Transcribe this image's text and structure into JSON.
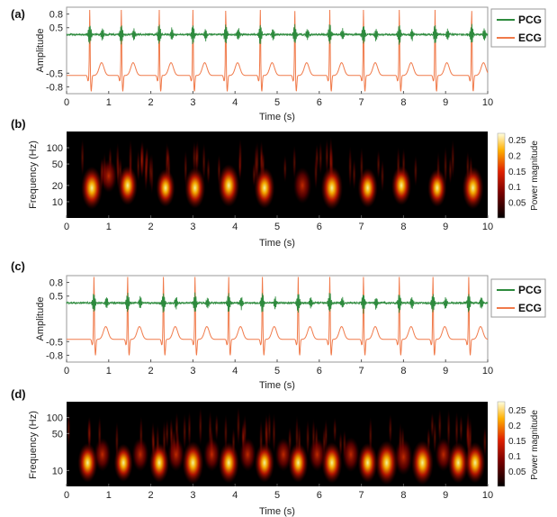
{
  "colors": {
    "pcg": "#2e8b3e",
    "ecg": "#f07a4a",
    "axis": "#333333",
    "frame": "#888888"
  },
  "chart_data": [
    {
      "panel": "(a)",
      "type": "line",
      "xlabel": "Time (s)",
      "ylabel": "Amplitude",
      "xlim": [
        0,
        10
      ],
      "ylim": [
        -0.95,
        0.95
      ],
      "x_ticks": [
        "0",
        "1",
        "2",
        "3",
        "4",
        "5",
        "6",
        "7",
        "8",
        "9",
        "10"
      ],
      "y_ticks": [
        "0.8",
        "0.5",
        "-0.5",
        "-0.8"
      ],
      "y_tick_values": [
        0.8,
        0.5,
        -0.5,
        -0.8
      ],
      "series": [
        {
          "name": "PCG",
          "baseline": 0.35,
          "beats": [
            0.55,
            1.3,
            2.2,
            3.0,
            3.78,
            4.6,
            5.42,
            6.25,
            7.05,
            7.9,
            8.75,
            9.62
          ]
        },
        {
          "name": "ECG",
          "baseline": -0.55,
          "r_peaks": [
            0.55,
            1.3,
            2.2,
            3.0,
            3.78,
            4.6,
            5.42,
            6.25,
            7.05,
            7.9,
            8.75,
            9.62
          ]
        }
      ],
      "legend": "right"
    },
    {
      "panel": "(b)",
      "type": "heatmap",
      "xlabel": "Time (s)",
      "ylabel": "Frequency (Hz)",
      "xlim": [
        0,
        10
      ],
      "y_ticks": [
        "100",
        "50",
        "20",
        "10"
      ],
      "x_ticks": [
        "0",
        "1",
        "2",
        "3",
        "4",
        "5",
        "6",
        "7",
        "8",
        "9",
        "10"
      ],
      "colorbar_label": "Power magnitude",
      "colorbar_ticks": [
        "0.25",
        "0.2",
        "0.15",
        "0.1",
        "0.05"
      ],
      "blobs": [
        {
          "t": 0.6,
          "f": 18,
          "p": 0.24
        },
        {
          "t": 1.0,
          "f": 30,
          "p": 0.12
        },
        {
          "t": 1.45,
          "f": 20,
          "p": 0.2
        },
        {
          "t": 2.35,
          "f": 18,
          "p": 0.18
        },
        {
          "t": 3.05,
          "f": 18,
          "p": 0.22
        },
        {
          "t": 3.85,
          "f": 20,
          "p": 0.24
        },
        {
          "t": 4.7,
          "f": 18,
          "p": 0.22
        },
        {
          "t": 5.6,
          "f": 20,
          "p": 0.16
        },
        {
          "t": 6.3,
          "f": 18,
          "p": 0.25
        },
        {
          "t": 7.15,
          "f": 18,
          "p": 0.2
        },
        {
          "t": 7.95,
          "f": 20,
          "p": 0.2
        },
        {
          "t": 8.8,
          "f": 18,
          "p": 0.18
        },
        {
          "t": 9.65,
          "f": 18,
          "p": 0.24
        }
      ]
    },
    {
      "panel": "(c)",
      "type": "line",
      "xlabel": "Time (s)",
      "ylabel": "Amplitude",
      "xlim": [
        0,
        10
      ],
      "ylim": [
        -0.95,
        0.95
      ],
      "x_ticks": [
        "0",
        "1",
        "2",
        "3",
        "4",
        "5",
        "6",
        "7",
        "8",
        "9",
        "10"
      ],
      "y_ticks": [
        "0.8",
        "0.5",
        "-0.5",
        "-0.8"
      ],
      "y_tick_values": [
        0.8,
        0.5,
        -0.5,
        -0.8
      ],
      "series": [
        {
          "name": "PCG",
          "baseline": 0.35,
          "beats": [
            0.65,
            1.45,
            2.3,
            3.05,
            3.85,
            4.65,
            5.5,
            6.25,
            7.05,
            7.9,
            8.7,
            9.55
          ]
        },
        {
          "name": "ECG",
          "baseline": -0.45,
          "r_peaks": [
            0.65,
            1.45,
            2.3,
            3.05,
            3.85,
            4.65,
            5.5,
            6.25,
            7.05,
            7.9,
            8.7,
            9.55
          ]
        }
      ],
      "legend": "right"
    },
    {
      "panel": "(d)",
      "type": "heatmap",
      "xlabel": "Time (s)",
      "ylabel": "Frequency (Hz)",
      "xlim": [
        0,
        10
      ],
      "y_ticks": [
        "100",
        "50",
        "10"
      ],
      "x_ticks": [
        "0",
        "1",
        "2",
        "3",
        "4",
        "5",
        "6",
        "7",
        "8",
        "9",
        "10"
      ],
      "colorbar_label": "Power magnitude",
      "colorbar_ticks": [
        "0.25",
        "0.2",
        "0.15",
        "0.1",
        "0.05"
      ],
      "blobs": [
        {
          "t": 0.5,
          "f": 14,
          "p": 0.2
        },
        {
          "t": 0.85,
          "f": 20,
          "p": 0.12
        },
        {
          "t": 1.35,
          "f": 14,
          "p": 0.18
        },
        {
          "t": 1.75,
          "f": 20,
          "p": 0.12
        },
        {
          "t": 2.2,
          "f": 14,
          "p": 0.2
        },
        {
          "t": 2.6,
          "f": 20,
          "p": 0.12
        },
        {
          "t": 3.0,
          "f": 14,
          "p": 0.24
        },
        {
          "t": 3.45,
          "f": 20,
          "p": 0.12
        },
        {
          "t": 3.85,
          "f": 14,
          "p": 0.22
        },
        {
          "t": 4.3,
          "f": 20,
          "p": 0.12
        },
        {
          "t": 4.7,
          "f": 14,
          "p": 0.2
        },
        {
          "t": 5.15,
          "f": 20,
          "p": 0.12
        },
        {
          "t": 5.5,
          "f": 14,
          "p": 0.2
        },
        {
          "t": 5.95,
          "f": 20,
          "p": 0.12
        },
        {
          "t": 6.3,
          "f": 14,
          "p": 0.22
        },
        {
          "t": 6.75,
          "f": 20,
          "p": 0.14
        },
        {
          "t": 7.15,
          "f": 14,
          "p": 0.2
        },
        {
          "t": 7.6,
          "f": 14,
          "p": 0.26
        },
        {
          "t": 8.0,
          "f": 18,
          "p": 0.16
        },
        {
          "t": 8.45,
          "f": 14,
          "p": 0.26
        },
        {
          "t": 8.95,
          "f": 20,
          "p": 0.12
        },
        {
          "t": 9.3,
          "f": 14,
          "p": 0.22
        },
        {
          "t": 9.7,
          "f": 14,
          "p": 0.22
        }
      ]
    }
  ]
}
